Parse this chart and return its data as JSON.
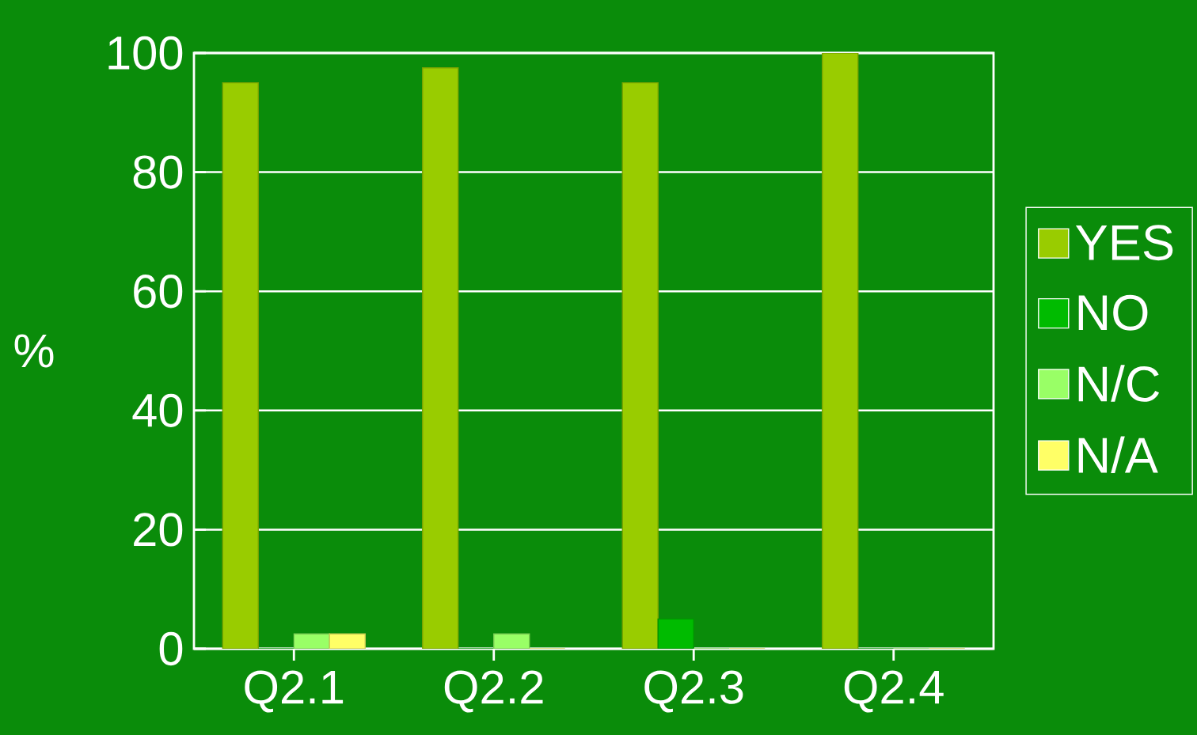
{
  "chart_data": {
    "type": "bar",
    "ylabel": "%",
    "categories": [
      "Q2.1",
      "Q2.2",
      "Q2.3",
      "Q2.4"
    ],
    "series": [
      {
        "name": "YES",
        "color": "#99cc00",
        "values": [
          95,
          97.5,
          95,
          100
        ]
      },
      {
        "name": "NO",
        "color": "#00bb00",
        "values": [
          0,
          0,
          5,
          0
        ]
      },
      {
        "name": "N/C",
        "color": "#99ff66",
        "values": [
          2.5,
          2.5,
          0,
          0
        ]
      },
      {
        "name": "N/A",
        "color": "#ffff66",
        "values": [
          2.5,
          0,
          0,
          0
        ]
      }
    ],
    "ylim": [
      0,
      100
    ],
    "yticks": [
      0,
      20,
      40,
      60,
      80,
      100
    ],
    "grid": "y",
    "legend": "right"
  }
}
